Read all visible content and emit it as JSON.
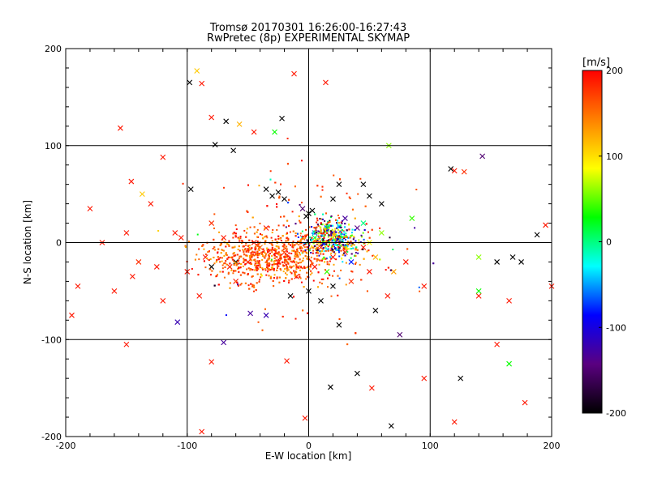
{
  "chart_data": {
    "type": "scatter",
    "title": "Tromsø 20170301 16:26:00-16:27:43",
    "subtitle": "RwPretec (8p) EXPERIMENTAL SKYMAP",
    "xlabel": "E-W location [km]",
    "ylabel": "N-S location [km]",
    "xlim": [
      -200,
      200
    ],
    "ylim": [
      -200,
      200
    ],
    "xticks": [
      "-200",
      "-100",
      "0",
      "100",
      "200"
    ],
    "yticks": [
      "-200",
      "-100",
      "0",
      "100",
      "200"
    ],
    "grid": true,
    "marker_styles": [
      "dot",
      "cross"
    ],
    "colorbar": {
      "label": "[m/s]",
      "range": [
        -200,
        200
      ],
      "ticks": [
        "-200",
        "-100",
        "0",
        "100",
        "200"
      ],
      "colormap": [
        "#000000",
        "#5a0080",
        "#0000ff",
        "#00ffff",
        "#00ff00",
        "#ffff00",
        "#ff8000",
        "#ff0000"
      ]
    },
    "points": [
      {
        "x": -150,
        "y": 10,
        "v": 190,
        "m": "x"
      },
      {
        "x": -180,
        "y": 35,
        "v": 190,
        "m": "x"
      },
      {
        "x": -140,
        "y": -20,
        "v": 180,
        "m": "x"
      },
      {
        "x": -120,
        "y": -60,
        "v": 190,
        "m": "x"
      },
      {
        "x": -160,
        "y": -50,
        "v": 190,
        "m": "x"
      },
      {
        "x": -100,
        "y": -30,
        "v": 190,
        "m": "x"
      },
      {
        "x": -80,
        "y": 20,
        "v": 180,
        "m": "x"
      },
      {
        "x": -60,
        "y": -40,
        "v": 190,
        "m": "x"
      },
      {
        "x": -190,
        "y": -45,
        "v": 190,
        "m": "x"
      },
      {
        "x": -170,
        "y": 0,
        "v": 190,
        "m": "x"
      },
      {
        "x": -130,
        "y": 40,
        "v": 190,
        "m": "x"
      },
      {
        "x": -110,
        "y": 10,
        "v": 190,
        "m": "x"
      },
      {
        "x": -90,
        "y": -55,
        "v": 190,
        "m": "x"
      },
      {
        "x": -70,
        "y": 5,
        "v": 190,
        "m": "x"
      },
      {
        "x": -50,
        "y": -20,
        "v": 180,
        "m": "x"
      },
      {
        "x": -35,
        "y": 15,
        "v": 190,
        "m": "x"
      },
      {
        "x": -20,
        "y": -10,
        "v": 180,
        "m": "x"
      },
      {
        "x": -10,
        "y": -35,
        "v": 190,
        "m": "x"
      },
      {
        "x": 5,
        "y": -25,
        "v": 190,
        "m": "x"
      },
      {
        "x": 20,
        "y": -15,
        "v": 190,
        "m": "x"
      },
      {
        "x": 35,
        "y": -40,
        "v": 180,
        "m": "x"
      },
      {
        "x": 50,
        "y": -30,
        "v": 190,
        "m": "x"
      },
      {
        "x": 65,
        "y": -55,
        "v": 190,
        "m": "x"
      },
      {
        "x": 80,
        "y": -20,
        "v": 190,
        "m": "x"
      },
      {
        "x": 95,
        "y": -45,
        "v": 190,
        "m": "x"
      },
      {
        "x": -125,
        "y": -25,
        "v": 190,
        "m": "x"
      },
      {
        "x": -145,
        "y": -35,
        "v": 190,
        "m": "x"
      },
      {
        "x": -105,
        "y": 5,
        "v": 190,
        "m": "x"
      },
      {
        "x": -85,
        "y": -15,
        "v": 190,
        "m": "x"
      },
      {
        "x": -65,
        "y": -25,
        "v": 190,
        "m": "x"
      },
      {
        "x": -45,
        "y": 0,
        "v": 190,
        "m": "x"
      },
      {
        "x": -25,
        "y": -20,
        "v": 190,
        "m": "x"
      },
      {
        "x": 10,
        "y": -5,
        "v": 190,
        "m": "x"
      },
      {
        "x": 30,
        "y": -10,
        "v": 190,
        "m": "x"
      },
      {
        "x": 45,
        "y": -5,
        "v": 190,
        "m": "x"
      },
      {
        "x": -5,
        "y": 5,
        "v": 190,
        "m": "x"
      },
      {
        "x": -155,
        "y": 118,
        "v": 190,
        "m": "x"
      },
      {
        "x": -120,
        "y": 88,
        "v": 190,
        "m": "x"
      },
      {
        "x": -88,
        "y": 164,
        "v": 190,
        "m": "x"
      },
      {
        "x": -12,
        "y": 174,
        "v": 190,
        "m": "x"
      },
      {
        "x": 14,
        "y": 165,
        "v": 190,
        "m": "x"
      },
      {
        "x": -80,
        "y": 129,
        "v": 190,
        "m": "x"
      },
      {
        "x": -45,
        "y": 114,
        "v": 190,
        "m": "x"
      },
      {
        "x": -146,
        "y": 63,
        "v": 190,
        "m": "x"
      },
      {
        "x": -195,
        "y": -75,
        "v": 190,
        "m": "x"
      },
      {
        "x": -150,
        "y": -105,
        "v": 190,
        "m": "x"
      },
      {
        "x": -80,
        "y": -123,
        "v": 190,
        "m": "x"
      },
      {
        "x": -18,
        "y": -122,
        "v": 190,
        "m": "x"
      },
      {
        "x": -3,
        "y": -181,
        "v": 190,
        "m": "x"
      },
      {
        "x": 52,
        "y": -150,
        "v": 190,
        "m": "x"
      },
      {
        "x": 95,
        "y": -140,
        "v": 190,
        "m": "x"
      },
      {
        "x": 178,
        "y": -165,
        "v": 190,
        "m": "x"
      },
      {
        "x": 120,
        "y": -185,
        "v": 190,
        "m": "x"
      },
      {
        "x": -88,
        "y": -195,
        "v": 190,
        "m": "x"
      },
      {
        "x": 155,
        "y": -105,
        "v": 190,
        "m": "x"
      },
      {
        "x": 165,
        "y": -60,
        "v": 190,
        "m": "x"
      },
      {
        "x": 140,
        "y": -55,
        "v": 190,
        "m": "x"
      },
      {
        "x": 120,
        "y": 74,
        "v": 190,
        "m": "x"
      },
      {
        "x": 128,
        "y": 73,
        "v": 180,
        "m": "x"
      },
      {
        "x": 200,
        "y": -45,
        "v": 190,
        "m": "x"
      },
      {
        "x": 195,
        "y": 18,
        "v": 190,
        "m": "x"
      },
      {
        "x": -92,
        "y": 177,
        "v": 110,
        "m": "x"
      },
      {
        "x": -57,
        "y": 122,
        "v": 120,
        "m": "x"
      },
      {
        "x": -137,
        "y": 50,
        "v": 110,
        "m": "x"
      },
      {
        "x": 66,
        "y": 100,
        "v": 60,
        "m": "x"
      },
      {
        "x": 165,
        "y": -125,
        "v": 30,
        "m": "x"
      },
      {
        "x": 140,
        "y": -15,
        "v": 60,
        "m": "x"
      },
      {
        "x": 140,
        "y": -50,
        "v": 30,
        "m": "x"
      },
      {
        "x": 85,
        "y": 25,
        "v": 40,
        "m": "x"
      },
      {
        "x": -28,
        "y": 114,
        "v": 30,
        "m": "x"
      },
      {
        "x": -108,
        "y": -82,
        "v": -120,
        "m": "x"
      },
      {
        "x": -35,
        "y": -75,
        "v": -120,
        "m": "x"
      },
      {
        "x": -48,
        "y": -73,
        "v": -130,
        "m": "x"
      },
      {
        "x": -70,
        "y": -103,
        "v": -130,
        "m": "x"
      },
      {
        "x": 143,
        "y": 89,
        "v": -150,
        "m": "x"
      },
      {
        "x": 75,
        "y": -95,
        "v": -150,
        "m": "x"
      },
      {
        "x": -98,
        "y": 165,
        "v": -200,
        "m": "x"
      },
      {
        "x": -68,
        "y": 125,
        "v": -200,
        "m": "x"
      },
      {
        "x": -62,
        "y": 95,
        "v": -200,
        "m": "x"
      },
      {
        "x": -77,
        "y": 101,
        "v": -200,
        "m": "x"
      },
      {
        "x": -97,
        "y": 55,
        "v": -200,
        "m": "x"
      },
      {
        "x": -22,
        "y": 128,
        "v": -200,
        "m": "x"
      },
      {
        "x": 117,
        "y": 76,
        "v": -200,
        "m": "x"
      },
      {
        "x": 188,
        "y": 8,
        "v": -200,
        "m": "x"
      },
      {
        "x": 175,
        "y": -20,
        "v": -200,
        "m": "x"
      },
      {
        "x": 168,
        "y": -15,
        "v": -200,
        "m": "x"
      },
      {
        "x": 155,
        "y": -20,
        "v": -200,
        "m": "x"
      },
      {
        "x": 68,
        "y": -189,
        "v": -200,
        "m": "x"
      },
      {
        "x": 18,
        "y": -149,
        "v": -200,
        "m": "x"
      },
      {
        "x": 40,
        "y": -135,
        "v": -200,
        "m": "x"
      },
      {
        "x": 125,
        "y": -140,
        "v": -200,
        "m": "x"
      },
      {
        "x": -25,
        "y": 52,
        "v": -200,
        "m": "x"
      },
      {
        "x": -30,
        "y": 48,
        "v": -200,
        "m": "x"
      },
      {
        "x": -20,
        "y": 45,
        "v": -200,
        "m": "x"
      },
      {
        "x": -35,
        "y": 55,
        "v": -200,
        "m": "x"
      },
      {
        "x": 0,
        "y": 30,
        "v": -200,
        "m": "x"
      },
      {
        "x": -2,
        "y": 27,
        "v": -200,
        "m": "x"
      },
      {
        "x": 3,
        "y": 33,
        "v": -200,
        "m": "x"
      },
      {
        "x": 20,
        "y": 45,
        "v": -200,
        "m": "x"
      },
      {
        "x": 45,
        "y": 60,
        "v": -200,
        "m": "x"
      },
      {
        "x": 50,
        "y": 48,
        "v": -200,
        "m": "x"
      },
      {
        "x": 25,
        "y": 60,
        "v": -200,
        "m": "x"
      },
      {
        "x": 60,
        "y": 40,
        "v": -200,
        "m": "x"
      },
      {
        "x": 20,
        "y": 10,
        "v": -200,
        "m": "x"
      },
      {
        "x": 0,
        "y": -50,
        "v": -200,
        "m": "x"
      },
      {
        "x": 10,
        "y": -60,
        "v": -200,
        "m": "x"
      },
      {
        "x": 20,
        "y": -45,
        "v": -200,
        "m": "x"
      },
      {
        "x": -15,
        "y": -55,
        "v": -200,
        "m": "x"
      },
      {
        "x": 25,
        "y": -85,
        "v": -200,
        "m": "x"
      },
      {
        "x": 55,
        "y": -70,
        "v": -200,
        "m": "x"
      },
      {
        "x": -5,
        "y": 35,
        "v": -150,
        "m": "x"
      },
      {
        "x": 30,
        "y": 25,
        "v": -130,
        "m": "x"
      },
      {
        "x": 40,
        "y": 15,
        "v": -140,
        "m": "x"
      },
      {
        "x": 15,
        "y": 15,
        "v": -100,
        "m": "x"
      },
      {
        "x": 5,
        "y": 10,
        "v": -60,
        "m": "x"
      },
      {
        "x": 35,
        "y": -20,
        "v": -80,
        "m": "x"
      },
      {
        "x": -80,
        "y": -25,
        "v": -200,
        "m": "x"
      },
      {
        "x": -60,
        "y": -20,
        "v": -200,
        "m": "x"
      },
      {
        "x": 5,
        "y": 5,
        "v": 10,
        "m": "x"
      },
      {
        "x": 25,
        "y": 5,
        "v": 20,
        "m": "x"
      },
      {
        "x": 45,
        "y": 20,
        "v": 0,
        "m": "x"
      },
      {
        "x": 60,
        "y": 10,
        "v": 60,
        "m": "x"
      },
      {
        "x": 50,
        "y": 0,
        "v": 90,
        "m": "x"
      },
      {
        "x": 30,
        "y": -5,
        "v": 110,
        "m": "x"
      },
      {
        "x": 55,
        "y": -15,
        "v": 120,
        "m": "x"
      },
      {
        "x": 70,
        "y": -30,
        "v": 130,
        "m": "x"
      },
      {
        "x": 15,
        "y": -30,
        "v": 40,
        "m": "x"
      },
      {
        "x": -40,
        "y": -5,
        "v": 150,
        "m": "x"
      }
    ]
  }
}
